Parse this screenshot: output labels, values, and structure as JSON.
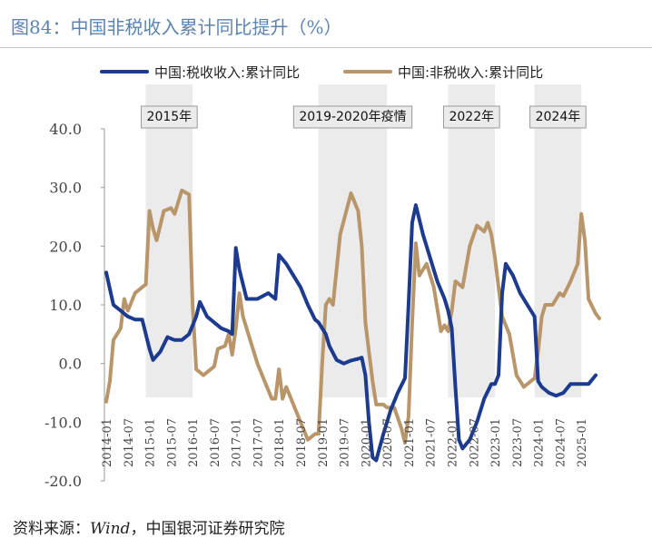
{
  "figure": {
    "title": "图84：中国非税收入累计同比提升（%）",
    "source_label": "资料来源：",
    "source_wind": "Wind",
    "source_org": "，中国银河证券研究院"
  },
  "chart_data": {
    "type": "line",
    "title": "中国非税收入累计同比提升（%）",
    "xlabel": "",
    "ylabel": "",
    "ylim": [
      -20,
      40
    ],
    "yticks": [
      40,
      30,
      20,
      10,
      0,
      -10,
      -20
    ],
    "ytick_labels": [
      "40.0",
      "30.0",
      "20.0",
      "10.0",
      "0.0",
      "-10.0",
      "-20.0"
    ],
    "x_start": "2014-01",
    "x_end": "2025-06",
    "xtick_labels": [
      "2014-01",
      "2014-07",
      "2015-01",
      "2015-07",
      "2016-01",
      "2016-07",
      "2017-01",
      "2017-07",
      "2018-01",
      "2018-07",
      "2019-01",
      "2019-07",
      "2020-01",
      "2020-07",
      "2021-01",
      "2021-07",
      "2022-01",
      "2022-07",
      "2023-01",
      "2023-07",
      "2024-01",
      "2024-07",
      "2025-01"
    ],
    "legend": "top",
    "grid": false,
    "shaded_periods": [
      {
        "label": "2015年",
        "start": "2015-01",
        "end": "2015-12"
      },
      {
        "label": "2019-2020年疫情",
        "start": "2019-01",
        "end": "2020-06"
      },
      {
        "label": "2022年",
        "start": "2022-01",
        "end": "2022-12"
      },
      {
        "label": "2024年",
        "start": "2024-01",
        "end": "2024-12"
      }
    ],
    "series": [
      {
        "name": "中国:税收收入:累计同比",
        "color": "#1c3a8e",
        "points": [
          [
            "2014-01",
            15.5
          ],
          [
            "2014-03",
            10
          ],
          [
            "2014-05",
            9
          ],
          [
            "2014-07",
            8
          ],
          [
            "2014-09",
            7.5
          ],
          [
            "2014-11",
            7.5
          ],
          [
            "2015-01",
            2.5
          ],
          [
            "2015-02",
            0.6
          ],
          [
            "2015-04",
            2
          ],
          [
            "2015-06",
            4.5
          ],
          [
            "2015-08",
            4
          ],
          [
            "2015-10",
            4
          ],
          [
            "2015-12",
            5
          ],
          [
            "2016-02",
            8
          ],
          [
            "2016-03",
            10.5
          ],
          [
            "2016-05",
            8
          ],
          [
            "2016-07",
            7
          ],
          [
            "2016-09",
            6
          ],
          [
            "2016-11",
            5.5
          ],
          [
            "2016-12",
            5
          ],
          [
            "2017-01",
            19.7
          ],
          [
            "2017-02",
            16
          ],
          [
            "2017-04",
            11
          ],
          [
            "2017-07",
            11
          ],
          [
            "2017-10",
            12
          ],
          [
            "2017-12",
            11
          ],
          [
            "2018-01",
            18.5
          ],
          [
            "2018-03",
            17
          ],
          [
            "2018-05",
            15
          ],
          [
            "2018-07",
            13
          ],
          [
            "2018-09",
            10
          ],
          [
            "2018-11",
            7.5
          ],
          [
            "2018-12",
            7
          ],
          [
            "2019-02",
            5
          ],
          [
            "2019-03",
            3
          ],
          [
            "2019-05",
            0.6
          ],
          [
            "2019-07",
            0
          ],
          [
            "2019-09",
            0.5
          ],
          [
            "2019-11",
            0.8
          ],
          [
            "2019-12",
            1
          ],
          [
            "2020-01",
            -2
          ],
          [
            "2020-02",
            -10
          ],
          [
            "2020-03",
            -16
          ],
          [
            "2020-04",
            -16.5
          ],
          [
            "2020-06",
            -12
          ],
          [
            "2020-08",
            -8
          ],
          [
            "2020-10",
            -5
          ],
          [
            "2020-12",
            -2.5
          ],
          [
            "2021-01",
            10
          ],
          [
            "2021-02",
            24
          ],
          [
            "2021-03",
            27
          ],
          [
            "2021-05",
            22
          ],
          [
            "2021-07",
            18
          ],
          [
            "2021-09",
            14
          ],
          [
            "2021-11",
            11
          ],
          [
            "2021-12",
            9
          ],
          [
            "2022-01",
            6
          ],
          [
            "2022-02",
            -4
          ],
          [
            "2022-03",
            -13
          ],
          [
            "2022-04",
            -14.5
          ],
          [
            "2022-06",
            -13
          ],
          [
            "2022-08",
            -10
          ],
          [
            "2022-10",
            -6
          ],
          [
            "2022-12",
            -3.5
          ],
          [
            "2023-01",
            -3.5
          ],
          [
            "2023-02",
            -2
          ],
          [
            "2023-03",
            12
          ],
          [
            "2023-04",
            17
          ],
          [
            "2023-06",
            15
          ],
          [
            "2023-08",
            12
          ],
          [
            "2023-10",
            10
          ],
          [
            "2023-12",
            8
          ],
          [
            "2024-01",
            -3
          ],
          [
            "2024-02",
            -4
          ],
          [
            "2024-04",
            -5
          ],
          [
            "2024-06",
            -5.5
          ],
          [
            "2024-08",
            -5
          ],
          [
            "2024-10",
            -3.5
          ],
          [
            "2024-12",
            -3.5
          ],
          [
            "2025-01",
            -3.5
          ],
          [
            "2025-03",
            -3.5
          ],
          [
            "2025-05",
            -2
          ]
        ]
      },
      {
        "name": "中国:非税收入:累计同比",
        "color": "#b8966a",
        "points": [
          [
            "2014-01",
            -6.5
          ],
          [
            "2014-02",
            -3
          ],
          [
            "2014-03",
            4
          ],
          [
            "2014-05",
            6
          ],
          [
            "2014-06",
            11
          ],
          [
            "2014-07",
            9
          ],
          [
            "2014-09",
            12
          ],
          [
            "2014-11",
            13
          ],
          [
            "2014-12",
            13.5
          ],
          [
            "2015-01",
            26
          ],
          [
            "2015-02",
            23
          ],
          [
            "2015-03",
            21
          ],
          [
            "2015-05",
            26
          ],
          [
            "2015-07",
            26.5
          ],
          [
            "2015-08",
            25.5
          ],
          [
            "2015-10",
            29.5
          ],
          [
            "2015-12",
            28.8
          ],
          [
            "2016-01",
            10
          ],
          [
            "2016-02",
            -1
          ],
          [
            "2016-04",
            -2
          ],
          [
            "2016-07",
            -0.5
          ],
          [
            "2016-08",
            2.5
          ],
          [
            "2016-10",
            3
          ],
          [
            "2016-11",
            5
          ],
          [
            "2016-12",
            1.5
          ],
          [
            "2017-01",
            6
          ],
          [
            "2017-02",
            12
          ],
          [
            "2017-03",
            8
          ],
          [
            "2017-05",
            4
          ],
          [
            "2017-07",
            0
          ],
          [
            "2017-09",
            -3
          ],
          [
            "2017-11",
            -6
          ],
          [
            "2017-12",
            -6
          ],
          [
            "2018-01",
            -1
          ],
          [
            "2018-02",
            -6
          ],
          [
            "2018-03",
            -4
          ],
          [
            "2018-05",
            -7
          ],
          [
            "2018-07",
            -10
          ],
          [
            "2018-09",
            -13
          ],
          [
            "2018-11",
            -12
          ],
          [
            "2018-12",
            -12
          ],
          [
            "2019-01",
            0
          ],
          [
            "2019-02",
            10
          ],
          [
            "2019-03",
            11
          ],
          [
            "2019-04",
            10
          ],
          [
            "2019-06",
            22
          ],
          [
            "2019-09",
            29
          ],
          [
            "2019-11",
            26
          ],
          [
            "2019-12",
            20
          ],
          [
            "2020-01",
            7
          ],
          [
            "2020-02",
            2
          ],
          [
            "2020-03",
            -3
          ],
          [
            "2020-04",
            -7
          ],
          [
            "2020-06",
            -7
          ],
          [
            "2020-07",
            -7.5
          ],
          [
            "2020-09",
            -7.5
          ],
          [
            "2020-11",
            -11
          ],
          [
            "2020-12",
            -13.5
          ],
          [
            "2021-01",
            -9
          ],
          [
            "2021-02",
            7
          ],
          [
            "2021-03",
            20.5
          ],
          [
            "2021-04",
            15
          ],
          [
            "2021-06",
            17
          ],
          [
            "2021-08",
            13
          ],
          [
            "2021-10",
            5.5
          ],
          [
            "2021-11",
            6.5
          ],
          [
            "2021-12",
            5.5
          ],
          [
            "2022-01",
            9
          ],
          [
            "2022-02",
            14
          ],
          [
            "2022-04",
            13
          ],
          [
            "2022-06",
            20
          ],
          [
            "2022-08",
            23.5
          ],
          [
            "2022-10",
            22.5
          ],
          [
            "2022-11",
            24
          ],
          [
            "2022-12",
            22
          ],
          [
            "2023-01",
            18
          ],
          [
            "2023-03",
            8
          ],
          [
            "2023-05",
            5
          ],
          [
            "2023-07",
            -2
          ],
          [
            "2023-09",
            -4
          ],
          [
            "2023-11",
            -3
          ],
          [
            "2023-12",
            -2.5
          ],
          [
            "2024-01",
            2
          ],
          [
            "2024-02",
            8
          ],
          [
            "2024-03",
            10
          ],
          [
            "2024-05",
            10
          ],
          [
            "2024-07",
            12
          ],
          [
            "2024-08",
            11.5
          ],
          [
            "2024-10",
            14
          ],
          [
            "2024-12",
            17
          ],
          [
            "2025-01",
            25.5
          ],
          [
            "2025-02",
            21
          ],
          [
            "2025-03",
            11
          ],
          [
            "2025-05",
            8.5
          ],
          [
            "2025-06",
            7.7
          ]
        ]
      }
    ]
  }
}
